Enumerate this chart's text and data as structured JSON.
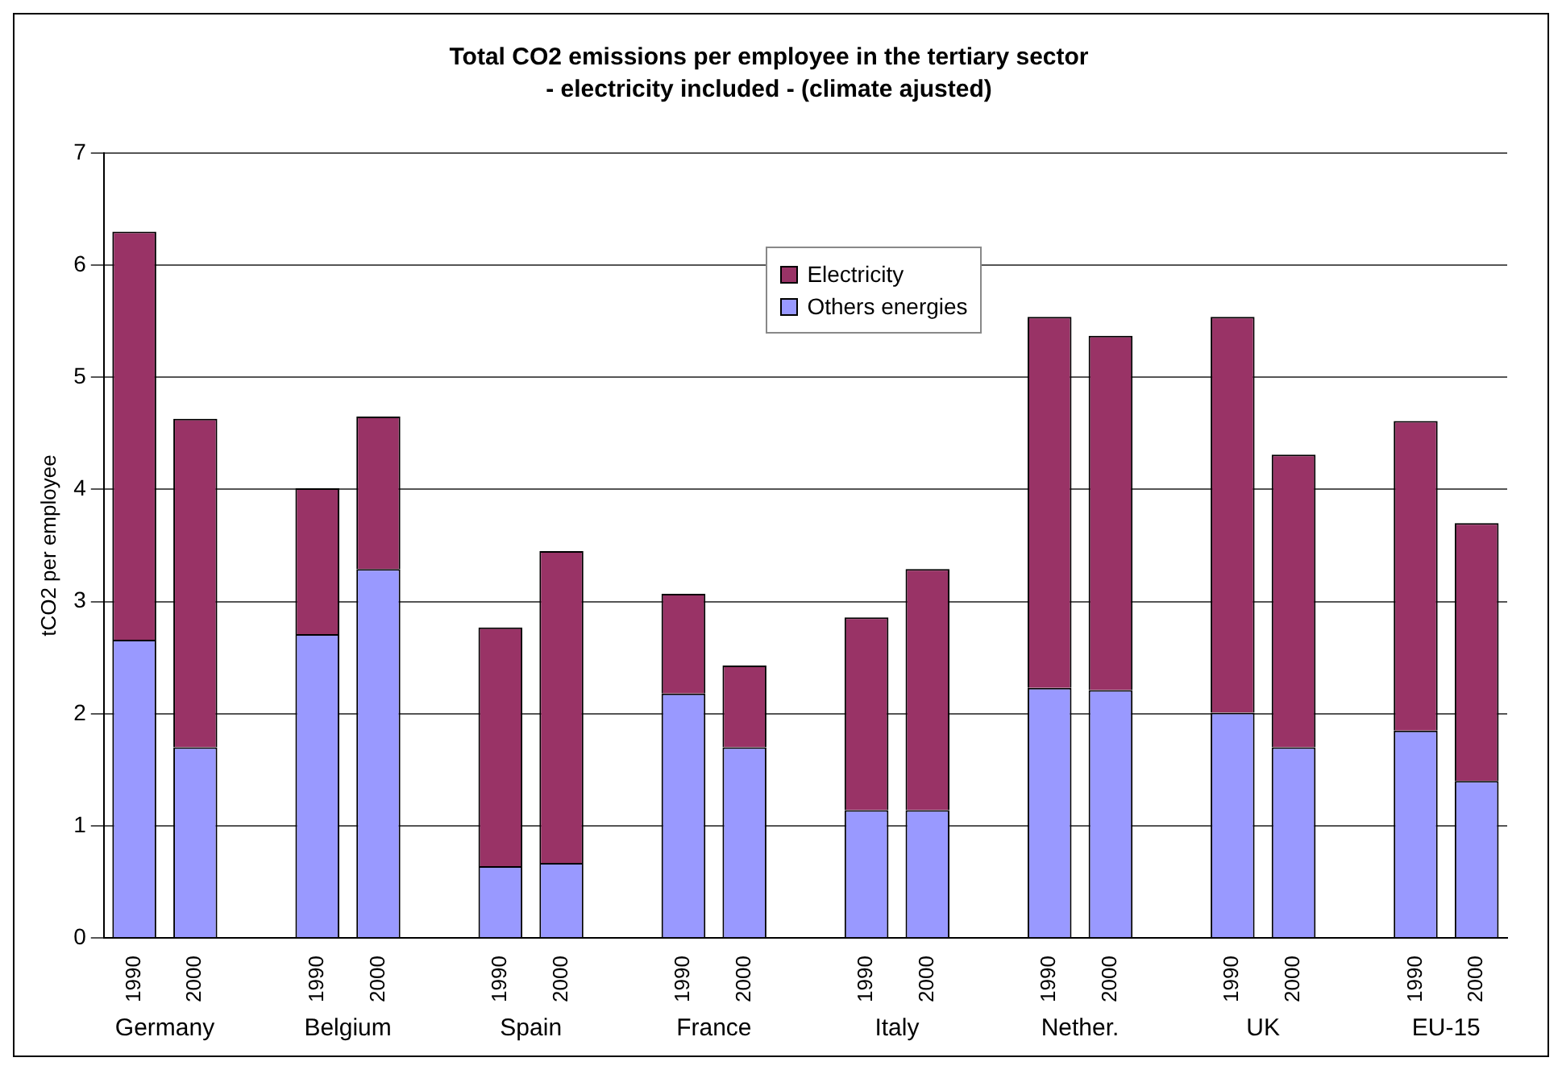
{
  "chart_data": {
    "type": "bar",
    "title": "Total CO2 emissions per employee in the tertiary sector",
    "subtitle": "- electricity included - (climate ajusted)",
    "ylabel": "tCO2 per employee",
    "categories": [
      "1990",
      "2000",
      null,
      "1990",
      "2000",
      null,
      "1990",
      "2000",
      null,
      "1990",
      "2000",
      null,
      "1990",
      "2000",
      null,
      "1990",
      "2000",
      null,
      "1990",
      "2000",
      null,
      "1990",
      "2000"
    ],
    "series": [
      {
        "name": "Others energies",
        "color": "#9999ff",
        "values": [
          2.66,
          1.7,
          null,
          2.71,
          3.29,
          null,
          0.64,
          0.67,
          null,
          2.18,
          1.7,
          null,
          1.14,
          1.14,
          null,
          2.23,
          2.21,
          null,
          2.01,
          1.7,
          null,
          1.85,
          1.4
        ]
      },
      {
        "name": "Electricity",
        "color": "#993366",
        "values": [
          3.64,
          2.93,
          null,
          1.3,
          1.36,
          null,
          2.13,
          2.78,
          null,
          0.89,
          0.73,
          null,
          1.72,
          2.15,
          null,
          3.31,
          3.16,
          null,
          3.53,
          2.61,
          null,
          2.76,
          2.3
        ]
      }
    ],
    "stacked": true,
    "ylim": [
      0,
      7
    ],
    "yticks": [
      0,
      1,
      2,
      3,
      4,
      5,
      6,
      7
    ],
    "grid": "y",
    "legend": "top",
    "annotations": [
      "Germany",
      "Belgium",
      "Spain",
      "France",
      "Italy",
      "Nether.",
      "UK",
      "EU-15"
    ]
  }
}
